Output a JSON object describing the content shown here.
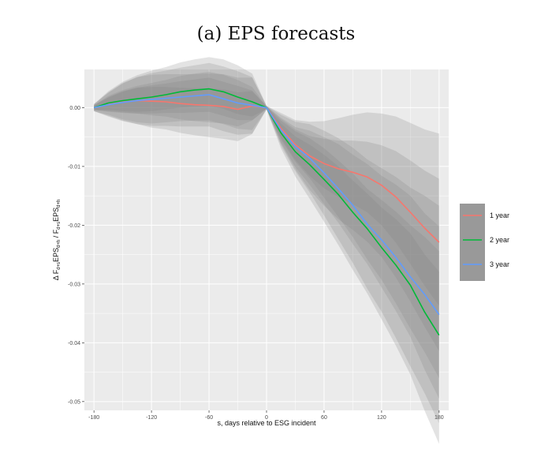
{
  "chart_data": {
    "type": "line",
    "title": "(a) EPS forecasts",
    "xlabel": "s, days relative to ESG incident",
    "ylabel_parts": {
      "p1": "Δ F",
      "p2": "d+s",
      "p3": "EPS",
      "p4": "d+h",
      "p5": " / F",
      "p6": "d+s",
      "p7": "EPS",
      "p8": "d+h"
    },
    "xlim": [
      -190,
      190
    ],
    "ylim": [
      -0.0515,
      0.0065
    ],
    "x_ticks": [
      -180,
      -120,
      -60,
      0,
      60,
      120,
      180
    ],
    "y_ticks": [
      0.0,
      -0.01,
      -0.02,
      -0.03,
      -0.04,
      -0.05
    ],
    "y_tick_labels": [
      "0.00",
      "-0.01",
      "-0.02",
      "-0.03",
      "-0.04",
      "-0.05"
    ],
    "legend_position": "right",
    "grid": true,
    "series": [
      {
        "name": "1 year",
        "color": "#F8766D",
        "x": [
          -180,
          -165,
          -150,
          -135,
          -120,
          -105,
          -90,
          -75,
          -60,
          -45,
          -30,
          -15,
          0,
          15,
          30,
          45,
          60,
          75,
          90,
          105,
          120,
          135,
          150,
          165,
          180
        ],
        "y": [
          0.0,
          0.0006,
          0.001,
          0.0012,
          0.0011,
          0.001,
          0.0007,
          0.0005,
          0.0004,
          0.0002,
          -0.0003,
          0.0003,
          0.0,
          -0.0035,
          -0.0063,
          -0.0082,
          -0.0095,
          -0.0104,
          -0.011,
          -0.0118,
          -0.0132,
          -0.0152,
          -0.0178,
          -0.0205,
          -0.0229
        ],
        "band_inner": [
          0.0004,
          0.0012,
          0.0018,
          0.0022,
          0.0024,
          0.0025,
          0.0027,
          0.0028,
          0.0029,
          0.0029,
          0.0029,
          0.0025,
          0.0002,
          0.0016,
          0.0026,
          0.0034,
          0.0042,
          0.0048,
          0.0054,
          0.006,
          0.0068,
          0.0078,
          0.0088,
          0.0098,
          0.0108
        ],
        "band_outer": [
          0.0006,
          0.002,
          0.0032,
          0.004,
          0.0045,
          0.0047,
          0.005,
          0.0052,
          0.0054,
          0.0055,
          0.0054,
          0.0048,
          0.0003,
          0.0026,
          0.0042,
          0.0058,
          0.0072,
          0.0086,
          0.0098,
          0.011,
          0.0122,
          0.0137,
          0.0152,
          0.0168,
          0.0185
        ]
      },
      {
        "name": "2 year",
        "color": "#00BA38",
        "x": [
          -180,
          -165,
          -150,
          -135,
          -120,
          -105,
          -90,
          -75,
          -60,
          -45,
          -30,
          -15,
          0,
          15,
          30,
          45,
          60,
          75,
          90,
          105,
          120,
          135,
          150,
          165,
          180
        ],
        "y": [
          0.0,
          0.0008,
          0.0012,
          0.0015,
          0.0018,
          0.0022,
          0.0027,
          0.003,
          0.0032,
          0.0027,
          0.0018,
          0.001,
          0.0,
          -0.0043,
          -0.0075,
          -0.0097,
          -0.0122,
          -0.0148,
          -0.0178,
          -0.0206,
          -0.0238,
          -0.0268,
          -0.0302,
          -0.0348,
          -0.0387
        ],
        "band_inner": [
          0.0004,
          0.0012,
          0.0018,
          0.0022,
          0.0024,
          0.0025,
          0.0027,
          0.0028,
          0.0029,
          0.0029,
          0.0029,
          0.0025,
          0.0002,
          0.0016,
          0.0026,
          0.0034,
          0.0042,
          0.0048,
          0.0054,
          0.006,
          0.0068,
          0.0078,
          0.0088,
          0.0098,
          0.0108
        ],
        "band_outer": [
          0.0006,
          0.002,
          0.0032,
          0.004,
          0.0045,
          0.0047,
          0.005,
          0.0052,
          0.0054,
          0.0055,
          0.0054,
          0.0048,
          0.0003,
          0.0026,
          0.0042,
          0.0058,
          0.0072,
          0.0086,
          0.0098,
          0.011,
          0.0122,
          0.0137,
          0.0152,
          0.0168,
          0.0185
        ]
      },
      {
        "name": "3 year",
        "color": "#619CFF",
        "x": [
          -180,
          -165,
          -150,
          -135,
          -120,
          -105,
          -90,
          -75,
          -60,
          -45,
          -30,
          -15,
          0,
          15,
          30,
          45,
          60,
          75,
          90,
          105,
          120,
          135,
          150,
          165,
          180
        ],
        "y": [
          0.0,
          0.0005,
          0.0009,
          0.0012,
          0.0014,
          0.0016,
          0.0018,
          0.002,
          0.0022,
          0.0015,
          0.0008,
          0.0004,
          0.0,
          -0.0038,
          -0.0066,
          -0.0086,
          -0.0111,
          -0.0138,
          -0.0166,
          -0.0198,
          -0.0225,
          -0.0255,
          -0.0288,
          -0.0318,
          -0.0352
        ],
        "band_inner": [
          0.0004,
          0.0012,
          0.0018,
          0.0022,
          0.0024,
          0.0025,
          0.0027,
          0.0028,
          0.0029,
          0.0029,
          0.0029,
          0.0025,
          0.0002,
          0.0016,
          0.0026,
          0.0034,
          0.0042,
          0.0048,
          0.0054,
          0.006,
          0.0068,
          0.0078,
          0.0088,
          0.0098,
          0.0108
        ],
        "band_outer": [
          0.0006,
          0.002,
          0.0032,
          0.004,
          0.0045,
          0.0047,
          0.005,
          0.0052,
          0.0054,
          0.0055,
          0.0054,
          0.0048,
          0.0003,
          0.0026,
          0.0042,
          0.0058,
          0.0072,
          0.0086,
          0.0098,
          0.011,
          0.0122,
          0.0137,
          0.0152,
          0.0168,
          0.0185
        ]
      }
    ],
    "colors": {
      "panel": "#EBEBEB",
      "grid": "#FFFFFF",
      "band": "#7F7F7F",
      "legend_key": "#999999"
    }
  }
}
